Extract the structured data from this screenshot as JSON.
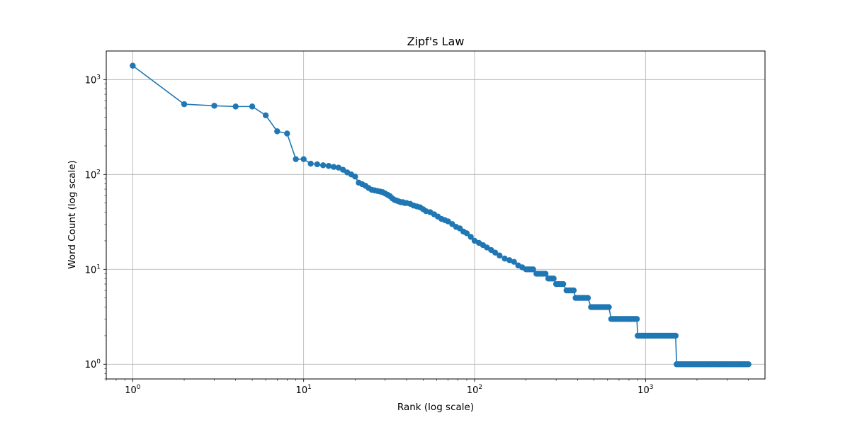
{
  "chart_data": {
    "type": "line",
    "title": "Zipf's Law",
    "xlabel": "Rank (log scale)",
    "ylabel": "Word Count (log scale)",
    "xscale": "log",
    "yscale": "log",
    "xlim": [
      0.7,
      5000
    ],
    "ylim": [
      0.7,
      2000
    ],
    "grid": true,
    "x_tick_labels": [
      {
        "base": "10",
        "exp": "0",
        "value": 1
      },
      {
        "base": "10",
        "exp": "1",
        "value": 10
      },
      {
        "base": "10",
        "exp": "2",
        "value": 100
      },
      {
        "base": "10",
        "exp": "3",
        "value": 1000
      }
    ],
    "y_tick_labels": [
      {
        "base": "10",
        "exp": "0",
        "value": 1
      },
      {
        "base": "10",
        "exp": "1",
        "value": 10
      },
      {
        "base": "10",
        "exp": "2",
        "value": 100
      },
      {
        "base": "10",
        "exp": "3",
        "value": 1000
      }
    ],
    "series": [
      {
        "color": "#1f77b4",
        "marker": "circle",
        "points": [
          [
            1,
            1400
          ],
          [
            2,
            550
          ],
          [
            3,
            530
          ],
          [
            4,
            520
          ],
          [
            5,
            520
          ],
          [
            6,
            420
          ],
          [
            7,
            285
          ],
          [
            8,
            270
          ],
          [
            9,
            145
          ],
          [
            10,
            145
          ],
          [
            11,
            130
          ],
          [
            12,
            128
          ],
          [
            13,
            125
          ],
          [
            14,
            123
          ],
          [
            15,
            120
          ],
          [
            16,
            118
          ],
          [
            17,
            112
          ],
          [
            18,
            105
          ],
          [
            19,
            100
          ],
          [
            20,
            95
          ],
          [
            21,
            82
          ],
          [
            22,
            79
          ],
          [
            23,
            76
          ],
          [
            24,
            72
          ],
          [
            25,
            69
          ],
          [
            26,
            68
          ],
          [
            27,
            67
          ],
          [
            28,
            66
          ],
          [
            29,
            65
          ],
          [
            30,
            63
          ],
          [
            31,
            61
          ],
          [
            32,
            59
          ],
          [
            33,
            56
          ],
          [
            34,
            54
          ],
          [
            35,
            53
          ],
          [
            36,
            52
          ],
          [
            37,
            51
          ],
          [
            38,
            51
          ],
          [
            39,
            50
          ],
          [
            40,
            50
          ],
          [
            42,
            49
          ],
          [
            44,
            47
          ],
          [
            46,
            46
          ],
          [
            48,
            45
          ],
          [
            50,
            43
          ],
          [
            52,
            41
          ],
          [
            55,
            40
          ],
          [
            58,
            38
          ],
          [
            61,
            36
          ],
          [
            64,
            34
          ],
          [
            67,
            33
          ],
          [
            70,
            32
          ],
          [
            74,
            30
          ],
          [
            78,
            28
          ],
          [
            82,
            27
          ],
          [
            86,
            25
          ],
          [
            90,
            24
          ],
          [
            95,
            22
          ],
          [
            100,
            20
          ],
          [
            106,
            19
          ],
          [
            112,
            18
          ],
          [
            118,
            17
          ],
          [
            125,
            16
          ],
          [
            132,
            15
          ],
          [
            140,
            14
          ],
          [
            150,
            13
          ],
          [
            160,
            12.5
          ],
          [
            170,
            12
          ],
          [
            180,
            11
          ],
          [
            190,
            10.5
          ],
          [
            200,
            10
          ],
          [
            220,
            10
          ],
          [
            230,
            9
          ],
          [
            260,
            9
          ],
          [
            270,
            8
          ],
          [
            290,
            8
          ],
          [
            300,
            7
          ],
          [
            330,
            7
          ],
          [
            345,
            6
          ],
          [
            380,
            6
          ],
          [
            390,
            5
          ],
          [
            460,
            5
          ],
          [
            480,
            4
          ],
          [
            610,
            4
          ],
          [
            630,
            3
          ],
          [
            890,
            3
          ],
          [
            900,
            2
          ],
          [
            1500,
            2
          ],
          [
            1520,
            1
          ],
          [
            4000,
            1
          ]
        ]
      }
    ]
  }
}
